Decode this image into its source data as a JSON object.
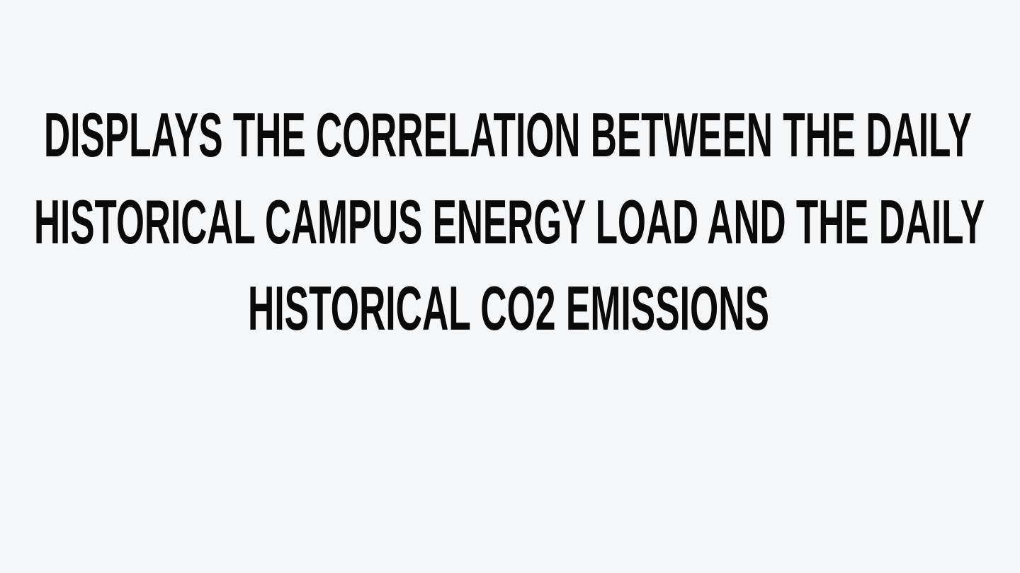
{
  "slide": {
    "lines": [
      "DISPLAYS THE CORRELATION BETWEEN THE DAILY",
      "HISTORICAL CAMPUS ENERGY LOAD AND THE DAILY",
      "HISTORICAL CO2 EMISSIONS"
    ]
  }
}
